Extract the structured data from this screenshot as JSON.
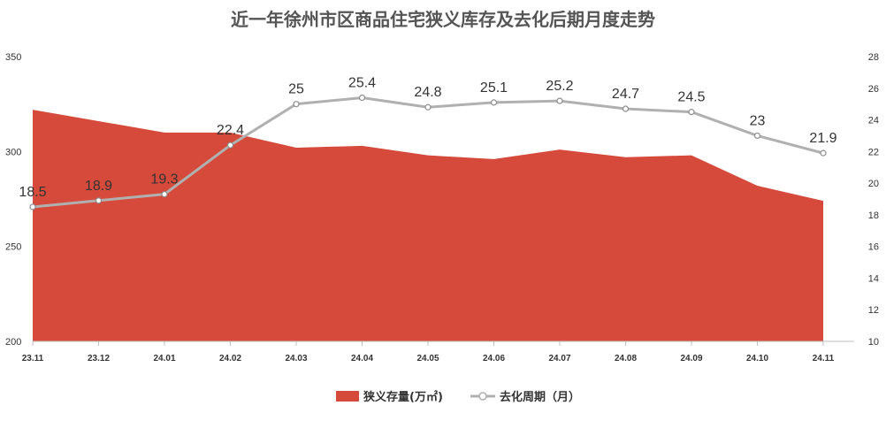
{
  "chart_data": {
    "type": "area+line",
    "title": "近一年徐州市区商品住宅狭义库存及去化后期月度走势",
    "categories": [
      "23.11",
      "23.12",
      "24.01",
      "24.02",
      "24.03",
      "24.04",
      "24.05",
      "24.06",
      "24.07",
      "24.08",
      "24.09",
      "24.10",
      "24.11"
    ],
    "series": [
      {
        "name": "狭义存量(万㎡)",
        "type": "area",
        "axis": "left",
        "color": "#d54a3a",
        "values": [
          322,
          316,
          310,
          310,
          302,
          303,
          298,
          296,
          301,
          297,
          298,
          282,
          274
        ]
      },
      {
        "name": "去化周期（月）",
        "type": "line",
        "axis": "right",
        "color": "#b0b0b0",
        "values": [
          18.5,
          18.9,
          19.3,
          22.4,
          25,
          25.4,
          24.8,
          25.1,
          25.2,
          24.7,
          24.5,
          23,
          21.9
        ],
        "labels": [
          "18.5",
          "18.9",
          "19.3",
          "22.4",
          "25",
          "25.4",
          "24.8",
          "25.1",
          "25.2",
          "24.7",
          "24.5",
          "23",
          "21.9"
        ]
      }
    ],
    "y_left": {
      "min": 200,
      "max": 350,
      "ticks": [
        "200",
        "250",
        "300",
        "350"
      ]
    },
    "y_right": {
      "min": 10,
      "max": 28,
      "ticks": [
        "10",
        "12",
        "14",
        "16",
        "18",
        "20",
        "22",
        "24",
        "26",
        "28"
      ]
    },
    "legend_position": "bottom",
    "grid": false
  }
}
